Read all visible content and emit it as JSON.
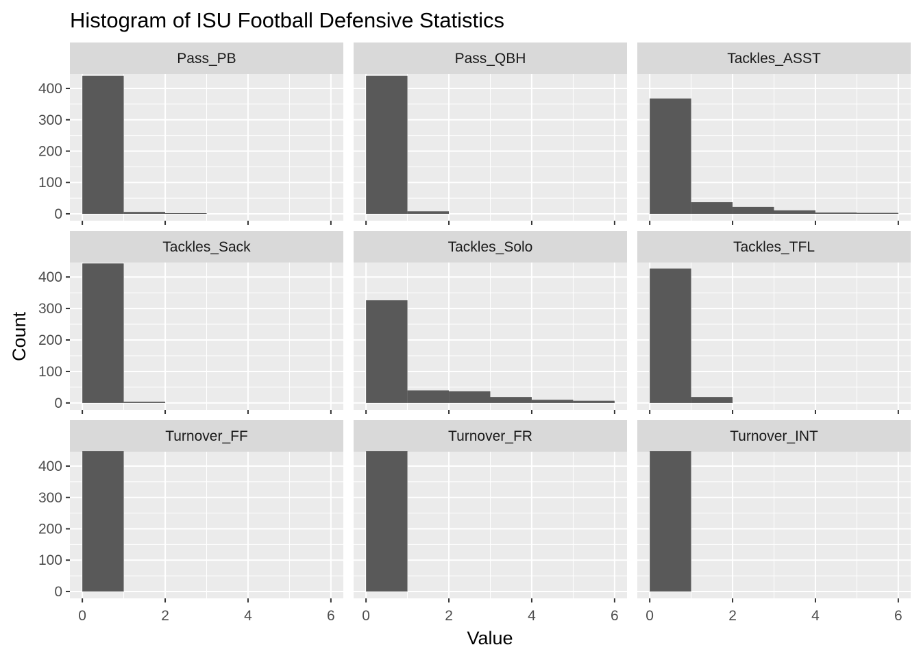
{
  "chart_data": {
    "type": "bar",
    "title": "Histogram of ISU Football Defensive Statistics",
    "xlabel": "Value",
    "ylabel": "Count",
    "xlim": [
      -0.3,
      6.3
    ],
    "ylim": [
      -22,
      446
    ],
    "x_ticks": [
      0,
      2,
      4,
      6
    ],
    "y_ticks": [
      0,
      100,
      200,
      300,
      400
    ],
    "bin_width": 1,
    "grid": true,
    "facet_layout": "3x3 grid, shared axes",
    "bar_color": "#595959",
    "panel_background": "#ebebeb",
    "strip_background": "#d9d9d9",
    "facets": [
      {
        "name": "Pass_PB",
        "bins": [
          0,
          1,
          2,
          3,
          4,
          5
        ],
        "counts": [
          440,
          6,
          2,
          0,
          0,
          0
        ]
      },
      {
        "name": "Pass_QBH",
        "bins": [
          0,
          1,
          2,
          3,
          4,
          5
        ],
        "counts": [
          440,
          8,
          0,
          0,
          0,
          0
        ]
      },
      {
        "name": "Tackles_ASST",
        "bins": [
          0,
          1,
          2,
          3,
          4,
          5
        ],
        "counts": [
          368,
          37,
          22,
          11,
          4,
          3
        ]
      },
      {
        "name": "Tackles_Sack",
        "bins": [
          0,
          1,
          2,
          3,
          4,
          5
        ],
        "counts": [
          443,
          4,
          0,
          0,
          0,
          0
        ]
      },
      {
        "name": "Tackles_Solo",
        "bins": [
          0,
          1,
          2,
          3,
          4,
          5
        ],
        "counts": [
          326,
          40,
          37,
          19,
          10,
          7
        ]
      },
      {
        "name": "Tackles_TFL",
        "bins": [
          0,
          1,
          2,
          3,
          4,
          5
        ],
        "counts": [
          427,
          19,
          0,
          0,
          0,
          0
        ]
      },
      {
        "name": "Turnover_FF",
        "bins": [
          0,
          1,
          2,
          3,
          4,
          5
        ],
        "counts": [
          448,
          0,
          0,
          0,
          0,
          0
        ]
      },
      {
        "name": "Turnover_FR",
        "bins": [
          0,
          1,
          2,
          3,
          4,
          5
        ],
        "counts": [
          448,
          0,
          0,
          0,
          0,
          0
        ]
      },
      {
        "name": "Turnover_INT",
        "bins": [
          0,
          1,
          2,
          3,
          4,
          5
        ],
        "counts": [
          448,
          0,
          0,
          0,
          0,
          0
        ]
      }
    ]
  }
}
